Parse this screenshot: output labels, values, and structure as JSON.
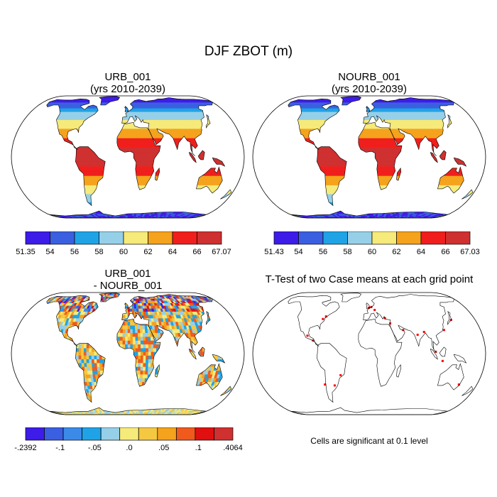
{
  "figure_title": "DJF ZBOT (m)",
  "panels": [
    {
      "title_line1": "URB_001",
      "title_line2": "(yrs 2010-2039)",
      "colorbar": {
        "colors": [
          "#3d1be8",
          "#3a5fe0",
          "#1fa3e6",
          "#96cfe8",
          "#f5ea7a",
          "#f5a21c",
          "#f01e1c",
          "#cf3030"
        ],
        "labels": [
          "51.35",
          "54",
          "56",
          "58",
          "60",
          "62",
          "64",
          "66",
          "67.07"
        ]
      }
    },
    {
      "title_line1": "NOURB_001",
      "title_line2": "(yrs 2010-2039)",
      "colorbar": {
        "colors": [
          "#3d1be8",
          "#3a5fe0",
          "#1fa3e6",
          "#96cfe8",
          "#f5ea7a",
          "#f5a21c",
          "#f01e1c",
          "#cf3030"
        ],
        "labels": [
          "51.43",
          "54",
          "56",
          "58",
          "60",
          "62",
          "64",
          "66",
          "67.03"
        ]
      }
    },
    {
      "title_line1": "URB_001",
      "title_line2": "- NOURB_001",
      "colorbar": {
        "colors": [
          "#3d1be8",
          "#3a5fe0",
          "#3c8ae8",
          "#1fa3e6",
          "#96cfe8",
          "#f5ea7a",
          "#f5c842",
          "#f5a21c",
          "#f05a1c",
          "#e01010",
          "#cf3030"
        ],
        "labels": [
          "-.2392",
          "-.1",
          "-.05",
          ".0",
          ".05",
          ".1",
          ".4064"
        ]
      }
    },
    {
      "title": "T-Test of two Case means at each grid point",
      "note": "Cells are significant at 0.1 level",
      "significant_color": "#ff0000"
    }
  ]
}
